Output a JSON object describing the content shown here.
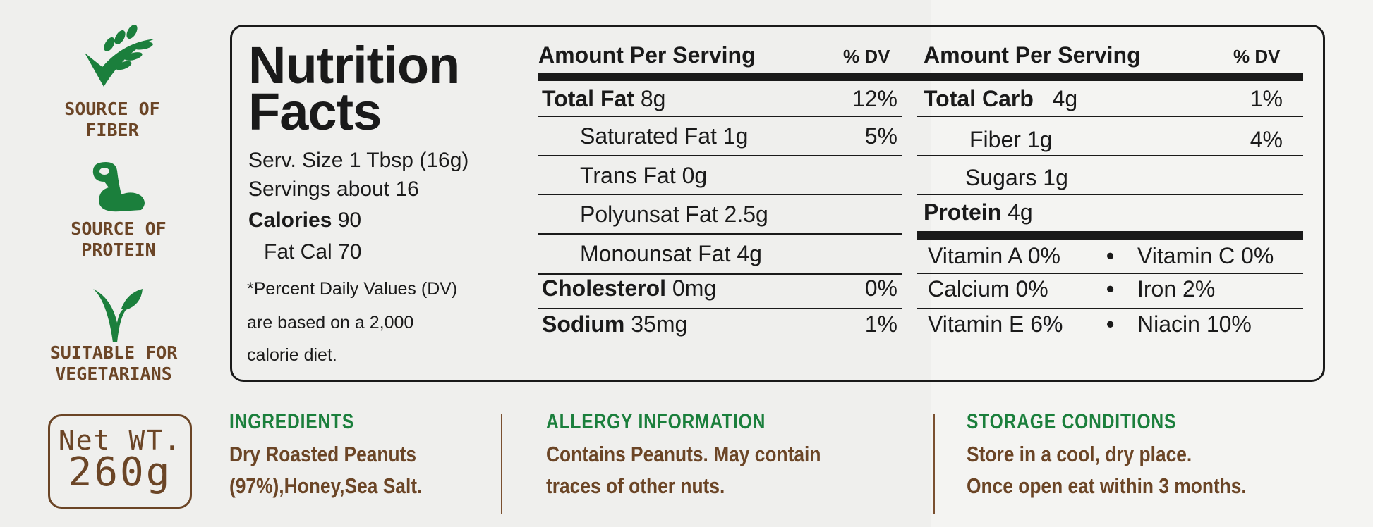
{
  "badges": [
    {
      "icon": "wheat-check-icon",
      "lines": [
        "SOURCE OF",
        "FIBER"
      ]
    },
    {
      "icon": "flexed-arm-icon",
      "lines": [
        "SOURCE OF",
        "PROTEIN"
      ]
    },
    {
      "icon": "vegetarian-leaf-icon",
      "lines": [
        "SUITABLE FOR",
        "VEGETARIANS"
      ]
    }
  ],
  "net_weight": {
    "label": "Net WT.",
    "value": "260g"
  },
  "facts": {
    "title1": "Nutrition",
    "title2": "Facts",
    "serving_size": "Serv. Size 1 Tbsp (16g)",
    "servings": "Servings about 16",
    "calories_label": "Calories",
    "calories": "90",
    "fat_cal": "Fat Cal 70",
    "footnote": [
      "*Percent Daily Values (DV)",
      "are based on a 2,000",
      "calorie diet."
    ],
    "header_amount": "Amount Per Serving",
    "header_dv": "% DV",
    "left_rows": [
      {
        "name": "Total Fat",
        "amount": "8g",
        "dv": "12%",
        "bold": true
      },
      {
        "name": "Saturated Fat",
        "amount": "1g",
        "dv": "5%",
        "bold": false
      },
      {
        "name": "Trans Fat",
        "amount": "0g",
        "dv": "",
        "bold": false
      },
      {
        "name": "Polyunsat Fat",
        "amount": "2.5g",
        "dv": "",
        "bold": false
      },
      {
        "name": "Monounsat Fat",
        "amount": "4g",
        "dv": "",
        "bold": false
      },
      {
        "name": "Cholesterol",
        "amount": "0mg",
        "dv": "0%",
        "bold": true
      },
      {
        "name": "Sodium",
        "amount": "35mg",
        "dv": "1%",
        "bold": true
      }
    ],
    "right_rows": [
      {
        "name": "Total Carb",
        "amount": "4g",
        "dv": "1%"
      },
      {
        "name": "Fiber",
        "amount": "1g",
        "dv": "4%"
      },
      {
        "name": "Sugars",
        "amount": "1g",
        "dv": ""
      },
      {
        "name": "Protein",
        "amount": "4g",
        "dv": ""
      }
    ],
    "vitamins": [
      [
        "Vitamin A 0%",
        "Vitamin C 0%"
      ],
      [
        "Calcium 0%",
        "Iron 2%"
      ],
      [
        "Vitamin E 6%",
        "Niacin 10%"
      ]
    ],
    "bullet": "•"
  },
  "sections": [
    {
      "title": "INGREDIENTS",
      "lines": [
        "Dry Roasted Peanuts",
        "(97%),Honey,Sea Salt."
      ]
    },
    {
      "title": "ALLERGY INFORMATION",
      "lines": [
        "Contains Peanuts. May contain",
        "traces of other nuts."
      ]
    },
    {
      "title": "STORAGE CONDITIONS",
      "lines": [
        "Store in a cool, dry place.",
        "Once open eat within 3 months."
      ]
    }
  ],
  "colors": {
    "green": "#1b7f3c",
    "brown": "#6b4526",
    "ink": "#1a1a1a"
  }
}
